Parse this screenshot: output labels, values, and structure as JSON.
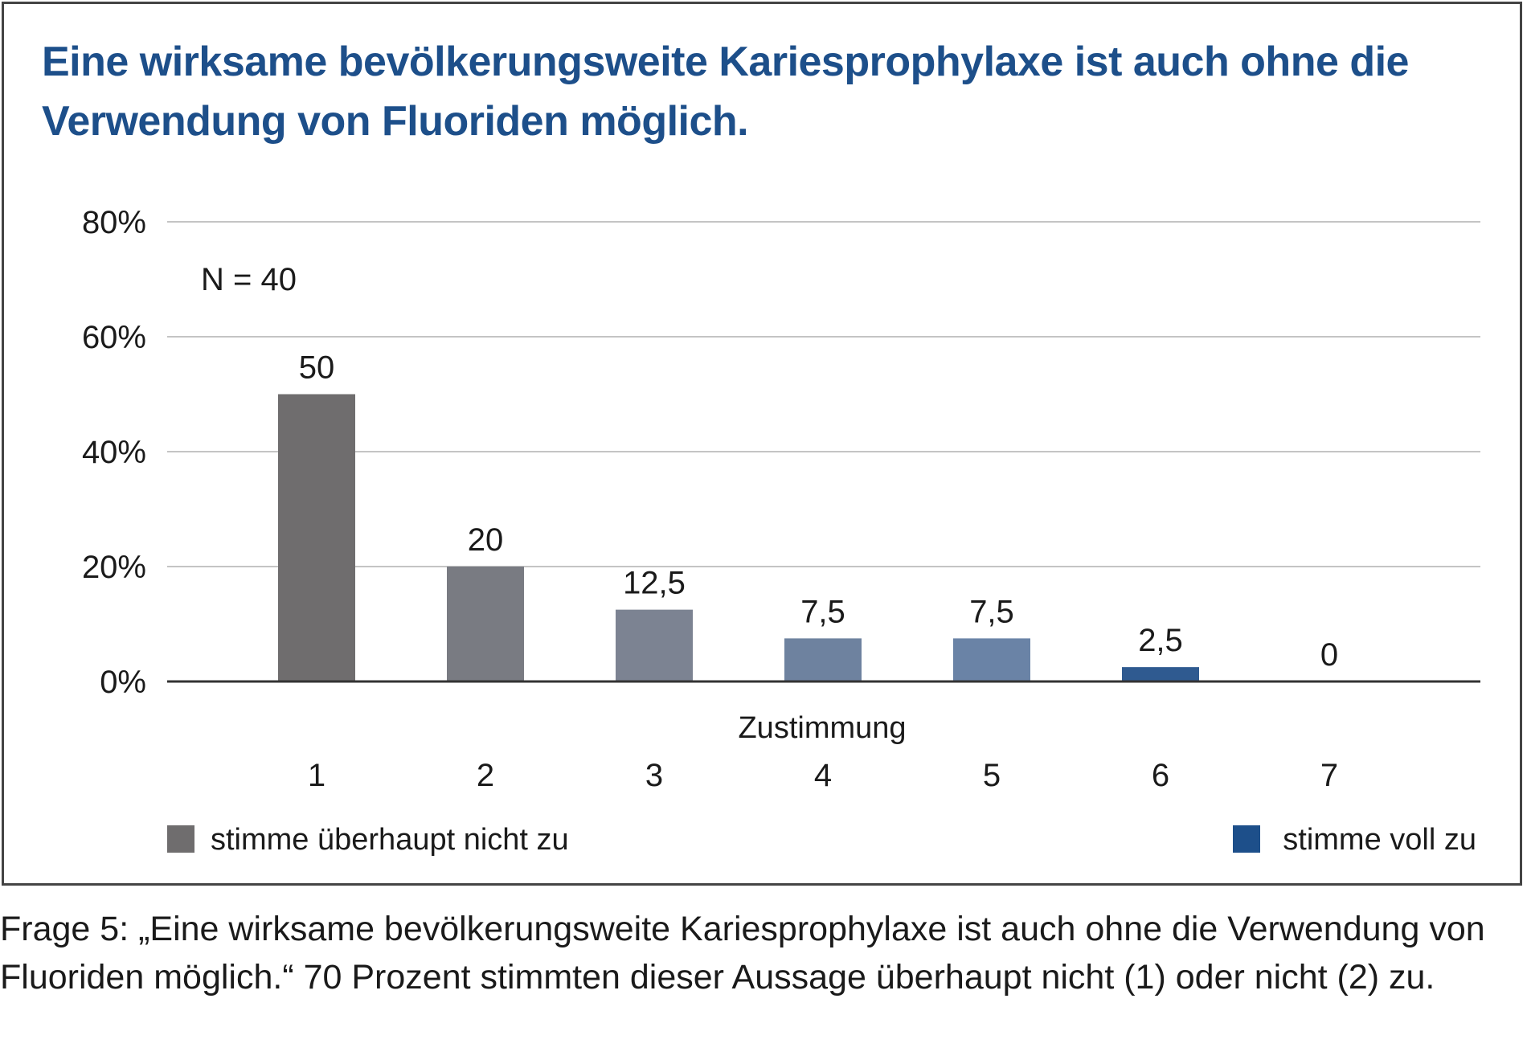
{
  "chart_data": {
    "type": "bar",
    "title": "Eine wirksame bevölkerungsweite Kariesprophylaxe ist auch ohne die Verwendung von Fluoriden möglich.",
    "sample_note": "N = 40",
    "categories": [
      "1",
      "2",
      "3",
      "4",
      "5",
      "6",
      "7"
    ],
    "values": [
      50,
      20,
      12.5,
      7.5,
      7.5,
      2.5,
      0
    ],
    "value_labels": [
      "50",
      "20",
      "12,5",
      "7,5",
      "7,5",
      "2,5",
      "0"
    ],
    "bar_colors": [
      "#6f6d6e",
      "#797b82",
      "#7c8392",
      "#6e829f",
      "#6a83a6",
      "#2f5a90",
      "#1d4f8a"
    ],
    "xlabel": "Zustimmung",
    "ylabel": "",
    "ylim": [
      0,
      80
    ],
    "yticks": [
      0,
      20,
      40,
      60,
      80
    ],
    "ytick_labels": [
      "0%",
      "20%",
      "40%",
      "60%",
      "80%"
    ],
    "grid": true,
    "legend": [
      {
        "label": "stimme überhaupt nicht zu",
        "color": "#6f6d6e",
        "position": "bottom-left"
      },
      {
        "label": "stimme voll zu",
        "color": "#1d4f8a",
        "position": "bottom-right"
      }
    ]
  },
  "caption": "Frage 5: „Eine wirksame bevölkerungsweite Kariesprophylaxe ist auch ohne die Verwendung von Fluoriden möglich.“ 70 Prozent stimmten dieser Aussage überhaupt nicht (1) oder nicht (2) zu.",
  "colors": {
    "title": "#1d4f8a",
    "grid": "#c4c4c4",
    "axis": "#333333",
    "text": "#1a1a1a"
  }
}
